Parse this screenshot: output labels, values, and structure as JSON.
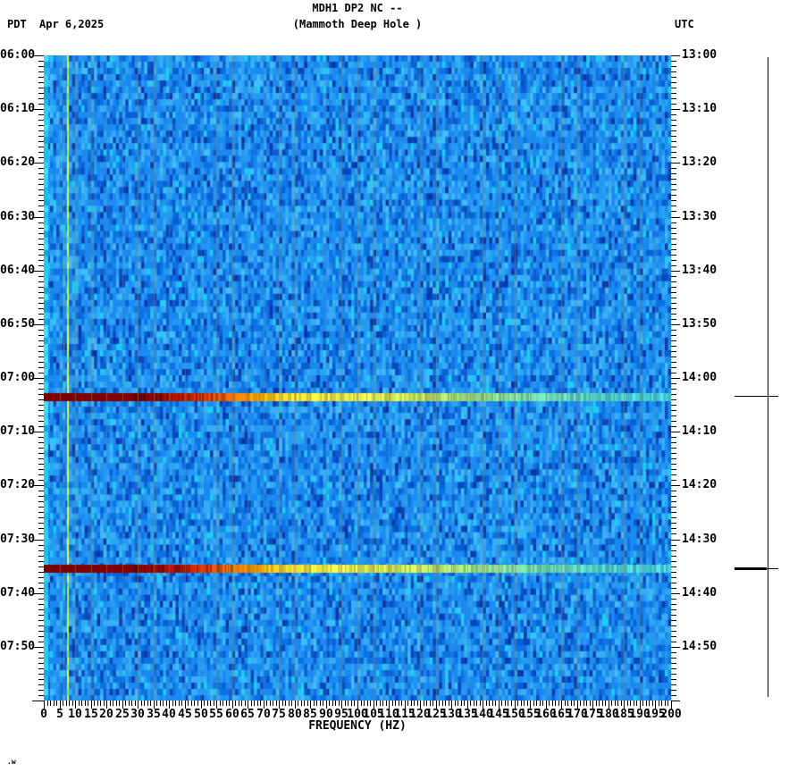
{
  "header": {
    "tz_left": "PDT",
    "date": "Apr 6,2025",
    "title_line1": "MDH1 DP2 NC --",
    "title_line2": "(Mammoth Deep Hole )",
    "tz_right": "UTC"
  },
  "x_axis": {
    "label": "FREQUENCY (HZ)",
    "min_hz": 0,
    "max_hz": 200,
    "major_step_hz": 5,
    "minor_step_hz": 1,
    "tick_labels": [
      "0",
      "5",
      "10",
      "15",
      "20",
      "25",
      "30",
      "35",
      "40",
      "45",
      "50",
      "55",
      "60",
      "65",
      "70",
      "75",
      "80",
      "85",
      "90",
      "95",
      "100",
      "105",
      "110",
      "115",
      "120",
      "125",
      "130",
      "135",
      "140",
      "145",
      "150",
      "155",
      "160",
      "165",
      "170",
      "175",
      "180",
      "185",
      "190",
      "195",
      "200"
    ]
  },
  "y_axis_left": {
    "timezone": "PDT",
    "major_step_min": 10,
    "minor_step_min": 1,
    "labels": [
      "06:00",
      "06:10",
      "06:20",
      "06:30",
      "06:40",
      "06:50",
      "07:00",
      "07:10",
      "07:20",
      "07:30",
      "07:40",
      "07:50"
    ]
  },
  "y_axis_right": {
    "timezone": "UTC",
    "major_step_min": 10,
    "minor_step_min": 1,
    "labels": [
      "13:00",
      "13:10",
      "13:20",
      "13:30",
      "13:40",
      "13:50",
      "14:00",
      "14:10",
      "14:20",
      "14:30",
      "14:40",
      "14:50"
    ]
  },
  "watermark": ".w",
  "colors": {
    "page_background": "#ffffff",
    "text": "#000000",
    "gridline": "rgba(125,130,118,0.55)",
    "marker_line": "#000000",
    "noise_palette": [
      [
        0.26,
        "#1a8af0"
      ],
      [
        0.15,
        "#2499f2"
      ],
      [
        0.13,
        "#0d72e4"
      ],
      [
        0.11,
        "#37aef6"
      ],
      [
        0.1,
        "#0a5ed2"
      ],
      [
        0.08,
        "#28a6f0"
      ],
      [
        0.06,
        "#0848ba"
      ],
      [
        0.05,
        "#41bdf8"
      ],
      [
        0.03,
        "#19d0f2"
      ],
      [
        0.03,
        "#0b35a8"
      ]
    ],
    "edge_column_cyans": [
      "#18c0ee",
      "#2fd2f4",
      "#10a8e0",
      "#40e0f8",
      "#22cdf0"
    ],
    "tremor_line_colors": [
      "#c8f23a",
      "#e8f840",
      "#a0ee50",
      "#d0f060",
      "#f8f040",
      "#80e070"
    ],
    "faint_line_colors": [
      "#4fc888",
      "#2ea8d0",
      "#60d070"
    ],
    "event_gradient_stops": [
      [
        0,
        "#800000"
      ],
      [
        30,
        "#8b0000"
      ],
      [
        36,
        "#a50a00"
      ],
      [
        44,
        "#cc1800"
      ],
      [
        52,
        "#f04200"
      ],
      [
        60,
        "#ff7800"
      ],
      [
        68,
        "#ffae00"
      ],
      [
        76,
        "#fade28"
      ],
      [
        90,
        "#f4f046"
      ],
      [
        105,
        "#e4ee50"
      ],
      [
        120,
        "#c8e860"
      ],
      [
        140,
        "#96e08c"
      ],
      [
        160,
        "#6edcb4"
      ],
      [
        180,
        "#50d6d2"
      ],
      [
        200,
        "#46d2e1"
      ]
    ]
  },
  "chart_data": {
    "type": "heatmap",
    "subtype": "seismic-spectrogram",
    "title": "MDH1 DP2 NC --",
    "subtitle": "(Mammoth Deep Hole )",
    "date": "Apr 6,2025",
    "xlabel": "FREQUENCY (HZ)",
    "x_range_hz": [
      0,
      200
    ],
    "x_major_tick_hz": 5,
    "x_minor_tick_hz": 1,
    "time_axis_left_timezone": "PDT",
    "time_axis_right_timezone": "UTC",
    "time_range_pdt": [
      "06:00",
      "08:00"
    ],
    "time_range_utc": [
      "13:00",
      "15:00"
    ],
    "time_major_tick_min": 10,
    "time_minor_tick_min": 1,
    "background_character": "low-amplitude ambient noise rendered in blue/cyan speckle",
    "persistent_spectral_lines_hz": [
      0.5,
      6.2,
      7.3
    ],
    "grid": "vertical gray lines every 5 Hz",
    "legend_position": "none",
    "events": [
      {
        "time_pdt": "07:03",
        "time_utc": "14:03",
        "freq_extent_hz": [
          0,
          200
        ],
        "description": "broadband high-amplitude burst; saturated dark red below ~45 Hz grading through orange and yellow to cyan-green at 200 Hz"
      },
      {
        "time_pdt": "07:35",
        "time_utc": "14:35",
        "freq_extent_hz": [
          0,
          200
        ],
        "description": "broadband high-amplitude burst; saturated dark red below ~45 Hz grading through orange and yellow to cyan-green at 200 Hz"
      }
    ]
  }
}
